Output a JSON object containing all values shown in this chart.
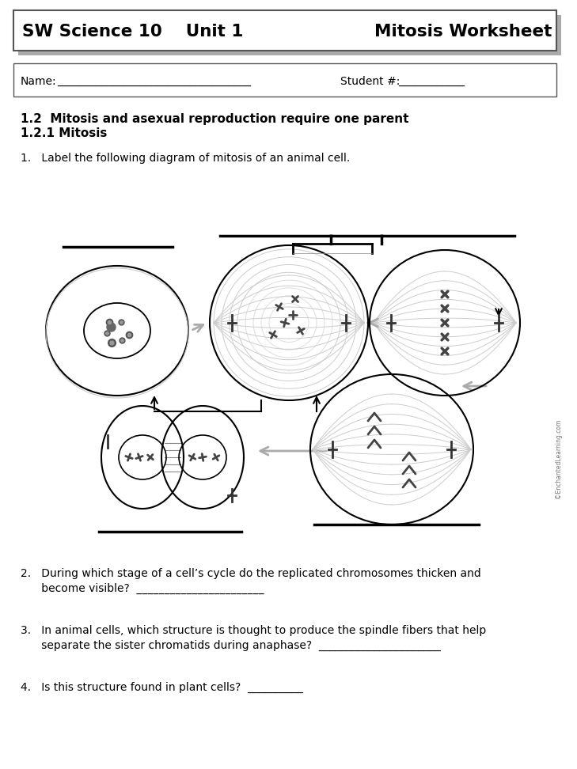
{
  "title_left": "SW Science 10    Unit 1",
  "title_right": "Mitosis Worksheet",
  "name_label": "Name:",
  "name_line": "___________________________________",
  "student_label": "Student #:",
  "student_line": "____________",
  "section_header1": "1.2  Mitosis and asexual reproduction require one parent",
  "section_header2": "1.2.1 Mitosis",
  "q1": "1.   Label the following diagram of mitosis of an animal cell.",
  "q2_line1": "2.   During which stage of a cell’s cycle do the replicated chromosomes thicken and",
  "q2_line2": "      become visible?  _______________________",
  "q3_line1": "3.   In animal cells, which structure is thought to produce the spindle fibers that help",
  "q3_line2": "      separate the sister chromatids during anaphase?  ______________________",
  "q4": "4.   Is this structure found in plant cells?  __________",
  "copyright": "©EnchantedLearning.com",
  "bg_color": "#ffffff",
  "shadow_color": "#aaaaaa",
  "border_color": "#555555",
  "text_color": "#000000",
  "gray_arrow": "#aaaaaa",
  "fig_width": 7.29,
  "fig_height": 9.72
}
